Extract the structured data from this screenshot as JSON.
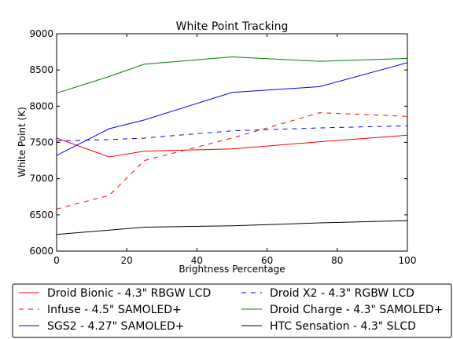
{
  "chart_data": {
    "type": "line",
    "title": "White Point Tracking",
    "xlabel": "Brightness Percentage",
    "ylabel": "White Point (K)",
    "xlim": [
      0,
      100
    ],
    "ylim": [
      6000,
      9000
    ],
    "xticks": [
      0,
      20,
      40,
      60,
      80,
      100
    ],
    "yticks": [
      6000,
      6500,
      7000,
      7500,
      8000,
      8500,
      9000
    ],
    "grid": false,
    "legend_position": "bottom",
    "series": [
      {
        "name": "Droid Bionic - 4.3\" RBGW LCD",
        "color": "#ff0000",
        "dashed": false,
        "x": [
          0,
          15,
          25,
          50,
          75,
          100
        ],
        "y": [
          7560,
          7300,
          7380,
          7410,
          7510,
          7600
        ]
      },
      {
        "name": "Droid X2 - 4.3\" RGBW LCD",
        "color": "#0000ff",
        "dashed": true,
        "x": [
          0,
          15,
          25,
          50,
          75,
          100
        ],
        "y": [
          7520,
          7540,
          7560,
          7660,
          7700,
          7730
        ]
      },
      {
        "name": "Infuse - 4.5\" SAMOLED+",
        "color": "#ff0000",
        "dashed": true,
        "x": [
          0,
          15,
          25,
          50,
          75,
          100
        ],
        "y": [
          6580,
          6770,
          7250,
          7560,
          7910,
          7860
        ]
      },
      {
        "name": "Droid Charge - 4.3\" SAMOLED+",
        "color": "#008000",
        "dashed": false,
        "x": [
          0,
          15,
          25,
          50,
          75,
          100
        ],
        "y": [
          8180,
          8410,
          8580,
          8680,
          8620,
          8660
        ]
      },
      {
        "name": "SGS2 - 4.27\" SAMOLED+",
        "color": "#0000ff",
        "dashed": false,
        "x": [
          0,
          15,
          25,
          50,
          75,
          100
        ],
        "y": [
          7320,
          7690,
          7810,
          8190,
          8270,
          8600
        ]
      },
      {
        "name": "HTC Sensation - 4.3\" SLCD",
        "color": "#000000",
        "dashed": false,
        "x": [
          0,
          15,
          25,
          50,
          75,
          100
        ],
        "y": [
          6230,
          6290,
          6330,
          6350,
          6390,
          6420
        ]
      }
    ]
  }
}
